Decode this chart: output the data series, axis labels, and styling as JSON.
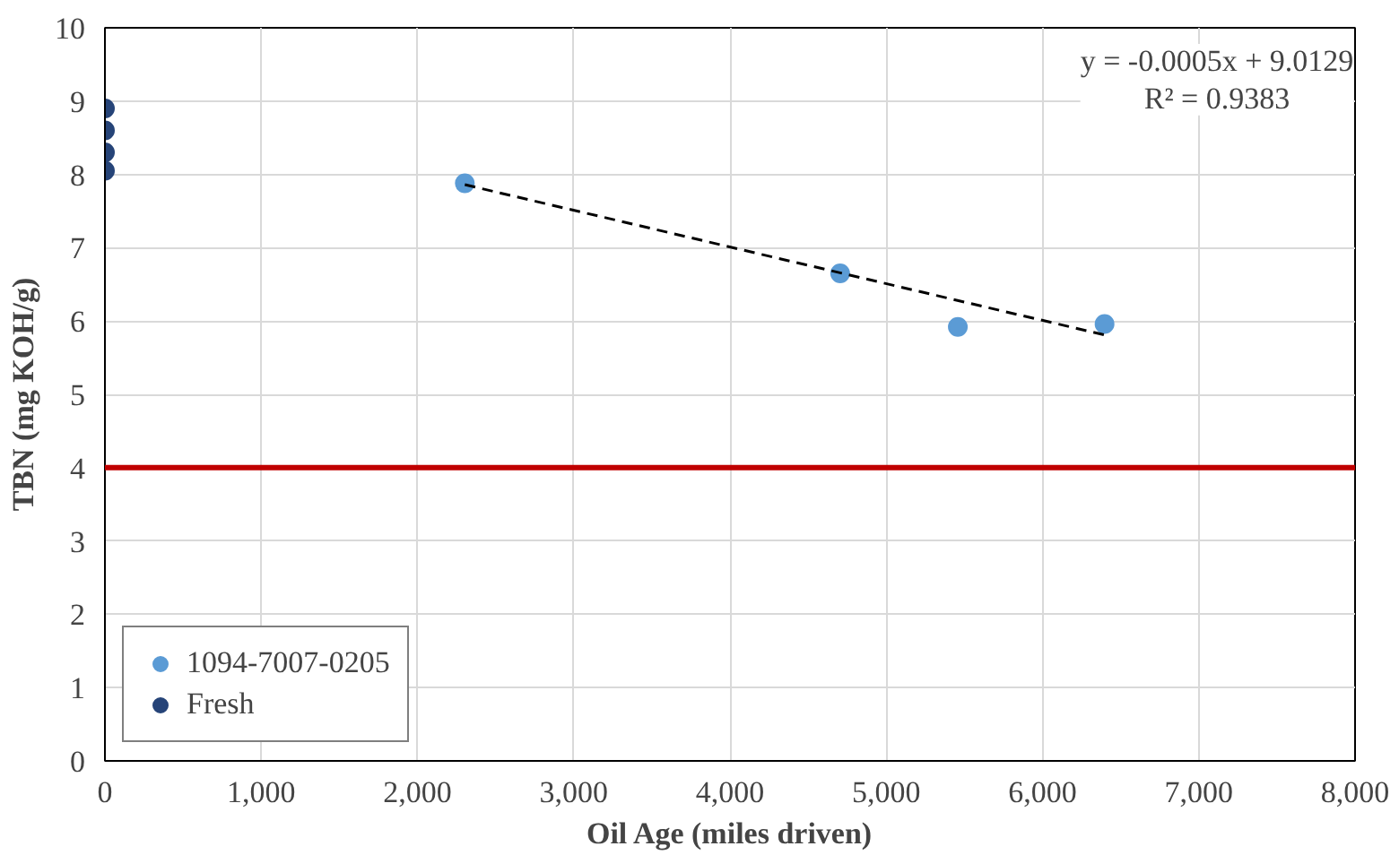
{
  "chart_data": {
    "type": "scatter",
    "xlabel": "Oil Age (miles driven)",
    "ylabel": "TBN (mg KOH/g)",
    "xlim": [
      0,
      8000
    ],
    "xticks": [
      {
        "value": 0,
        "label": "0"
      },
      {
        "value": 1000,
        "label": "1,000"
      },
      {
        "value": 2000,
        "label": "2,000"
      },
      {
        "value": 3000,
        "label": "3,000"
      },
      {
        "value": 4000,
        "label": "4,000"
      },
      {
        "value": 5000,
        "label": "5,000"
      },
      {
        "value": 6000,
        "label": "6,000"
      },
      {
        "value": 7000,
        "label": "7,000"
      },
      {
        "value": 8000,
        "label": "8,000"
      }
    ],
    "ylim": [
      0,
      10
    ],
    "yticks": [
      0,
      1,
      2,
      3,
      4,
      5,
      6,
      7,
      8,
      9,
      10
    ],
    "grid": true,
    "legend": "bottom left",
    "marker": "circle",
    "series": [
      {
        "name": "1094-7007-0205",
        "color": "#5b9bd5",
        "x": [
          2303,
          4705,
          5458,
          6397
        ],
        "values": [
          7.88,
          6.65,
          5.92,
          5.96
        ]
      },
      {
        "name": "Fresh",
        "color": "#264478",
        "x": [
          0,
          0,
          0,
          0
        ],
        "values": [
          8.05,
          8.3,
          8.6,
          8.9
        ]
      },
      {
        "type": "line",
        "color": "#000000",
        "line_style": "dashed",
        "marker": "none",
        "x": [
          2303,
          6397
        ],
        "values": [
          7.86,
          5.81
        ]
      }
    ],
    "ref_lines": [
      {
        "axis": "y",
        "value": 4,
        "color": "#c00000"
      }
    ],
    "annotations": [
      "y = -0.0005x + 9.0129\nR² = 0.9383"
    ]
  }
}
